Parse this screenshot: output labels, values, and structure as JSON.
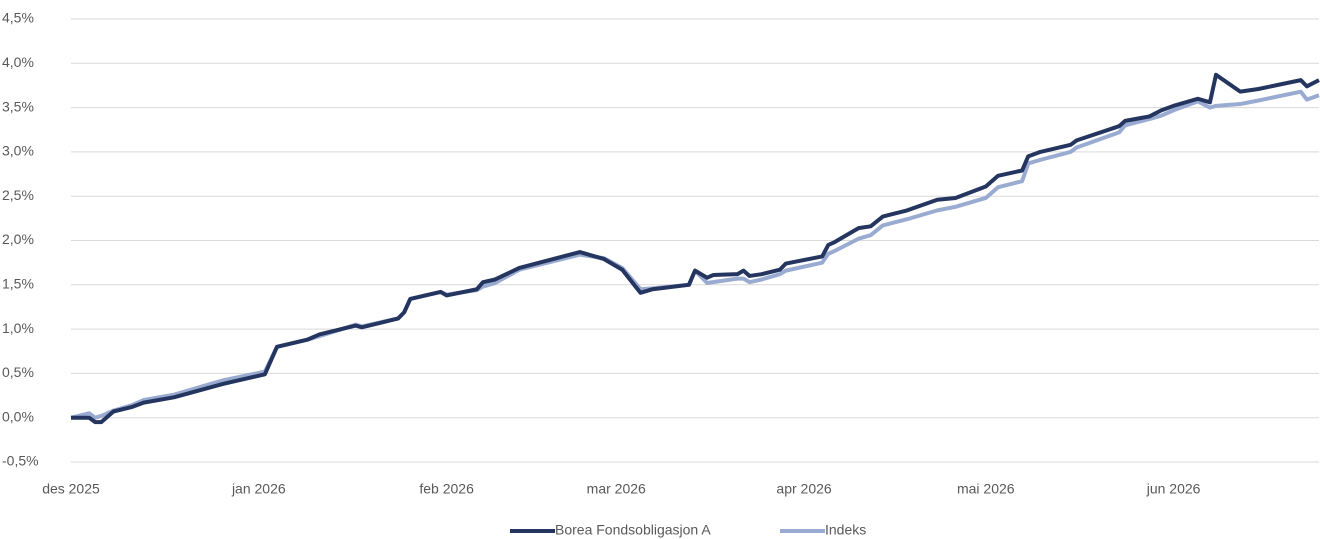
{
  "chart_data": {
    "type": "line",
    "x": [
      0,
      3,
      4,
      5,
      7,
      10,
      12,
      17,
      25,
      32,
      34,
      39,
      41,
      47,
      48,
      54,
      55,
      56,
      61,
      62,
      67,
      68,
      70,
      74,
      84,
      88,
      91,
      94,
      96,
      102,
      103,
      105,
      106,
      110,
      111,
      112,
      114,
      117,
      118,
      124,
      125,
      126,
      130,
      132,
      134,
      138,
      143,
      146,
      151,
      153,
      157,
      158,
      160,
      165,
      166,
      173,
      174,
      178,
      180,
      182,
      186,
      188,
      189,
      193,
      196,
      203,
      204,
      206
    ],
    "series": [
      {
        "name": "Borea Fondsobligasjon A",
        "color": "#243560",
        "values": [
          0,
          0.0,
          -0.05,
          -0.05,
          0.07,
          0.12,
          0.17,
          0.23,
          0.38,
          0.49,
          0.8,
          0.88,
          0.94,
          1.04,
          1.02,
          1.12,
          1.19,
          1.34,
          1.42,
          1.38,
          1.45,
          1.53,
          1.56,
          1.69,
          1.87,
          1.79,
          1.67,
          1.41,
          1.45,
          1.5,
          1.66,
          1.58,
          1.61,
          1.62,
          1.66,
          1.6,
          1.62,
          1.67,
          1.74,
          1.82,
          1.95,
          1.98,
          2.14,
          2.16,
          2.27,
          2.34,
          2.46,
          2.48,
          2.61,
          2.73,
          2.79,
          2.95,
          3.0,
          3.08,
          3.13,
          3.29,
          3.35,
          3.4,
          3.47,
          3.52,
          3.6,
          3.56,
          3.87,
          3.68,
          3.71,
          3.81,
          3.74,
          3.81
        ]
      },
      {
        "name": "Indeks",
        "color": "#9aabd2",
        "values": [
          0,
          0.05,
          0.0,
          0.02,
          0.08,
          0.14,
          0.2,
          0.26,
          0.42,
          0.52,
          0.8,
          0.88,
          0.92,
          1.05,
          1.03,
          1.12,
          1.19,
          1.34,
          1.42,
          1.39,
          1.44,
          1.48,
          1.52,
          1.67,
          1.84,
          1.8,
          1.69,
          1.45,
          1.46,
          1.5,
          1.66,
          1.52,
          1.53,
          1.57,
          1.57,
          1.53,
          1.56,
          1.62,
          1.66,
          1.75,
          1.85,
          1.88,
          2.02,
          2.06,
          2.17,
          2.24,
          2.34,
          2.38,
          2.48,
          2.6,
          2.67,
          2.87,
          2.91,
          3.0,
          3.05,
          3.22,
          3.3,
          3.37,
          3.41,
          3.47,
          3.57,
          3.5,
          3.52,
          3.54,
          3.58,
          3.68,
          3.59,
          3.64
        ]
      }
    ],
    "xlim": [
      0,
      206
    ],
    "xticks": [
      {
        "value": 0,
        "label": "des 2025"
      },
      {
        "value": 31,
        "label": "jan 2026"
      },
      {
        "value": 62,
        "label": "feb 2026"
      },
      {
        "value": 90,
        "label": "mar 2026"
      },
      {
        "value": 121,
        "label": "apr 2026"
      },
      {
        "value": 151,
        "label": "mai 2026"
      },
      {
        "value": 182,
        "label": "jun 2026"
      }
    ],
    "ylim": [
      -0.5,
      4.5
    ],
    "yticks": [
      {
        "value": -0.5,
        "label": "-0,5%"
      },
      {
        "value": 0,
        "label": "0,0%"
      },
      {
        "value": 0.5,
        "label": "0,5%"
      },
      {
        "value": 1,
        "label": "1,0%"
      },
      {
        "value": 1.5,
        "label": "1,5%"
      },
      {
        "value": 2,
        "label": "2,0%"
      },
      {
        "value": 2.5,
        "label": "2,5%"
      },
      {
        "value": 3,
        "label": "3,0%"
      },
      {
        "value": 3.5,
        "label": "3,5%"
      },
      {
        "value": 4,
        "label": "4,0%"
      },
      {
        "value": 4.5,
        "label": "4,5%"
      }
    ],
    "grid": true,
    "legend": "bottom"
  }
}
